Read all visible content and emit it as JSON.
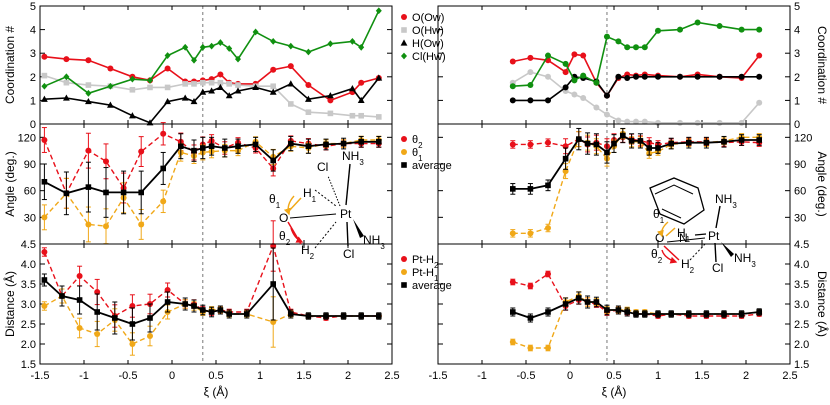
{
  "chart_data": {
    "type": "line",
    "xlabel": "ξ (Å)",
    "xlim": [
      -1.5,
      2.5
    ],
    "xticks": [
      -1.5,
      -1,
      -0.5,
      0,
      0.5,
      1,
      1.5,
      2,
      2.5
    ],
    "xtick_labels": [
      "-1.5",
      "-1",
      "-0.5",
      "0",
      "0.5",
      "1",
      "1.5",
      "2",
      "2.5"
    ],
    "colors": {
      "red": "#e8101a",
      "gray": "#c8c8c8",
      "black": "#000000",
      "green": "#109010",
      "orange": "#f0a818"
    },
    "rows": [
      {
        "id": "coord",
        "ylabel": "Coordination #",
        "ylim": [
          0,
          5
        ],
        "yticks": [
          0,
          1,
          2,
          3,
          4,
          5
        ],
        "ytick_labels": [
          "0",
          "1",
          "2",
          "3",
          "4",
          "5"
        ],
        "legend": [
          {
            "label": "O(Ow)",
            "color": "#e8101a",
            "marker": "circle"
          },
          {
            "label": "O(Hw)",
            "color": "#c8c8c8",
            "marker": "square"
          },
          {
            "label": "H(Ow)",
            "color": "#000000",
            "marker": "triangle"
          },
          {
            "label": "Cl(Hw)",
            "color": "#109010",
            "marker": "diamond"
          }
        ]
      },
      {
        "id": "angle",
        "ylabel": "Angle (deg.)",
        "ylim": [
          0,
          135
        ],
        "yticks": [
          0,
          30,
          60,
          90,
          120
        ],
        "ytick_labels": [
          "0",
          "30",
          "60",
          "90",
          "120"
        ],
        "legend": [
          {
            "label": "θ2",
            "color": "#e8101a",
            "marker": "circle"
          },
          {
            "label": "θ1",
            "color": "#f0a818",
            "marker": "circle"
          },
          {
            "label": "average",
            "color": "#000000",
            "marker": "square"
          }
        ]
      },
      {
        "id": "dist",
        "ylabel": "Distance (Å)",
        "ylim": [
          1.5,
          4.5
        ],
        "yticks": [
          1.5,
          2.0,
          2.5,
          3.0,
          3.5,
          4.0,
          4.5
        ],
        "ytick_labels": [
          "1.5",
          "2.0",
          "2.5",
          "3.0",
          "3.5",
          "4.0",
          "4.5"
        ],
        "legend": [
          {
            "label": "Pt-H2",
            "color": "#e8101a",
            "marker": "circle"
          },
          {
            "label": "Pt-H1",
            "color": "#f0a818",
            "marker": "circle"
          },
          {
            "label": "average",
            "color": "#000000",
            "marker": "square"
          }
        ]
      }
    ],
    "panels": [
      {
        "id": "left",
        "dashed_x": 0.35,
        "coord": {
          "x": [
            -1.45,
            -1.2,
            -0.95,
            -0.7,
            -0.45,
            -0.25,
            -0.05,
            0.15,
            0.25,
            0.35,
            0.45,
            0.55,
            0.65,
            0.75,
            0.95,
            1.15,
            1.35,
            1.55,
            1.8,
            2.05,
            2.15,
            2.35
          ],
          "series": [
            {
              "name": "O(Ow)",
              "color": "#e8101a",
              "marker": "circle",
              "values": [
                2.85,
                2.75,
                2.7,
                2.35,
                2.0,
                1.85,
                2.35,
                1.8,
                1.8,
                1.85,
                1.9,
                2.1,
                1.75,
                1.7,
                1.7,
                2.3,
                2.45,
                1.65,
                1.0,
                1.35,
                1.75,
                1.95
              ]
            },
            {
              "name": "O(Hw)",
              "color": "#c8c8c8",
              "marker": "square",
              "values": [
                2.05,
                1.75,
                1.65,
                1.6,
                1.45,
                1.55,
                1.55,
                1.7,
                1.7,
                1.75,
                1.75,
                1.75,
                1.7,
                1.65,
                1.6,
                1.6,
                0.85,
                0.5,
                0.45,
                0.35,
                0.35,
                0.3
              ]
            },
            {
              "name": "H(Ow)",
              "color": "#000000",
              "marker": "triangle",
              "values": [
                1.05,
                1.1,
                0.95,
                0.8,
                0.35,
                0.05,
                0.95,
                1.1,
                0.95,
                1.35,
                1.4,
                1.55,
                1.2,
                1.4,
                1.55,
                1.35,
                1.7,
                1.05,
                1.2,
                1.5,
                1.0,
                1.95
              ]
            },
            {
              "name": "Cl(Hw)",
              "color": "#109010",
              "marker": "diamond",
              "values": [
                1.6,
                2.0,
                1.3,
                1.6,
                1.9,
                1.85,
                2.9,
                3.25,
                2.7,
                3.25,
                3.3,
                3.45,
                3.2,
                2.75,
                3.9,
                3.5,
                3.3,
                3.05,
                3.4,
                3.5,
                3.25,
                4.8
              ]
            }
          ]
        },
        "angle": {
          "x": [
            -1.45,
            -1.2,
            -0.95,
            -0.75,
            -0.55,
            -0.35,
            -0.1,
            0.1,
            0.25,
            0.35,
            0.45,
            0.6,
            0.75,
            0.95,
            1.15,
            1.35,
            1.55,
            1.75,
            1.95,
            2.15,
            2.35
          ],
          "series": [
            {
              "name": "θ2",
              "color": "#e8101a",
              "values": [
                117,
                57,
                105,
                93,
                63,
                104,
                124,
                115,
                103,
                112,
                116,
                108,
                114,
                108,
                85,
                116,
                113,
                110,
                113,
                113,
                113
              ]
            },
            {
              "name": "θ1",
              "color": "#f0a818",
              "values": [
                30,
                57,
                22,
                20,
                52,
                22,
                48,
                103,
                99,
                103,
                104,
                105,
                105,
                115,
                98,
                110,
                108,
                113,
                113,
                117,
                117
              ]
            },
            {
              "name": "average",
              "color": "#000000",
              "values": [
                70,
                57,
                64,
                58,
                58,
                58,
                85,
                110,
                105,
                108,
                110,
                108,
                110,
                112,
                94,
                113,
                110,
                112,
                113,
                115,
                115
              ]
            }
          ],
          "err": [
            20,
            24,
            28,
            28,
            24,
            24,
            18,
            14,
            12,
            12,
            10,
            10,
            8,
            8,
            12,
            8,
            8,
            6,
            6,
            6,
            6
          ]
        },
        "dist": {
          "x": [
            -1.45,
            -1.25,
            -1.05,
            -0.85,
            -0.65,
            -0.45,
            -0.25,
            -0.05,
            0.15,
            0.25,
            0.35,
            0.45,
            0.55,
            0.65,
            0.85,
            1.15,
            1.35,
            1.55,
            1.75,
            1.95,
            2.15,
            2.35
          ],
          "series": [
            {
              "name": "Pt-H2",
              "color": "#e8101a",
              "values": [
                4.3,
                3.2,
                3.7,
                3.3,
                2.7,
                2.95,
                3.0,
                3.35,
                3.0,
                3.0,
                2.85,
                2.8,
                2.85,
                2.8,
                2.8,
                4.45,
                2.8,
                2.7,
                2.65,
                2.7,
                2.7,
                2.7
              ]
            },
            {
              "name": "Pt-H1",
              "color": "#f0a818",
              "values": [
                2.95,
                3.2,
                2.4,
                2.25,
                2.6,
                2.0,
                2.2,
                2.8,
                3.0,
                2.95,
                2.8,
                2.85,
                2.85,
                2.75,
                2.75,
                2.55,
                2.75,
                2.7,
                2.7,
                2.7,
                2.7,
                2.7
              ]
            },
            {
              "name": "average",
              "color": "#000000",
              "values": [
                3.6,
                3.2,
                3.1,
                2.8,
                2.65,
                2.5,
                2.65,
                3.05,
                3.0,
                2.95,
                2.85,
                2.8,
                2.85,
                2.75,
                2.75,
                3.5,
                2.75,
                2.7,
                2.7,
                2.7,
                2.7,
                2.7
              ]
            }
          ],
          "err": [
            0.15,
            0.25,
            0.35,
            0.45,
            0.4,
            0.4,
            0.35,
            0.25,
            0.15,
            0.15,
            0.12,
            0.12,
            0.1,
            0.1,
            0.1,
            0.9,
            0.1,
            0.08,
            0.08,
            0.08,
            0.08,
            0.08
          ]
        },
        "molecule_labels": {
          "theta1": "θ1",
          "theta2": "θ2",
          "h1": "H1",
          "h2": "H2",
          "o": "O",
          "pt": "Pt",
          "cl_top": "Cl",
          "nh3_top": "NH3",
          "nh3_right": "NH3",
          "cl_bottom": "Cl"
        }
      },
      {
        "id": "right",
        "dashed_x": 0.42,
        "coord": {
          "x": [
            -0.65,
            -0.45,
            -0.25,
            -0.05,
            0.05,
            0.15,
            0.3,
            0.42,
            0.55,
            0.65,
            0.75,
            0.85,
            1.0,
            1.25,
            1.45,
            1.7,
            1.95,
            2.15
          ],
          "series": [
            {
              "name": "O(Ow)",
              "color": "#e8101a",
              "values": [
                2.65,
                2.8,
                2.7,
                2.2,
                2.95,
                2.9,
                1.75,
                1.2,
                1.95,
                2.1,
                2.05,
                2.1,
                2.05,
                2.0,
                2.1,
                2.0,
                1.95,
                2.9
              ]
            },
            {
              "name": "O(Hw)",
              "color": "#c8c8c8",
              "values": [
                1.75,
                2.2,
                2.0,
                1.4,
                1.25,
                1.1,
                0.7,
                0.4,
                0.15,
                0.1,
                0.1,
                0.1,
                0.05,
                0.05,
                0.05,
                0.05,
                0.05,
                0.9
              ]
            },
            {
              "name": "H(Ow)",
              "color": "#000000",
              "values": [
                1.0,
                1.0,
                1.0,
                1.55,
                2.0,
                1.95,
                1.8,
                1.2,
                2.0,
                1.95,
                2.0,
                2.0,
                2.0,
                2.0,
                2.0,
                2.0,
                2.0,
                2.0
              ]
            },
            {
              "name": "Cl(Hw)",
              "color": "#109010",
              "values": [
                1.6,
                1.65,
                2.9,
                2.55,
                1.85,
                2.05,
                1.75,
                3.7,
                3.5,
                3.25,
                3.25,
                3.25,
                3.95,
                4.0,
                4.3,
                4.15,
                4.0,
                4.0
              ]
            }
          ]
        },
        "angle": {
          "x": [
            -0.65,
            -0.45,
            -0.25,
            -0.05,
            0.1,
            0.2,
            0.3,
            0.42,
            0.5,
            0.6,
            0.7,
            0.8,
            0.9,
            1.0,
            1.15,
            1.35,
            1.55,
            1.75,
            1.95,
            2.15
          ],
          "series": [
            {
              "name": "θ2",
              "color": "#e8101a",
              "values": [
                112,
                112,
                114,
                110,
                118,
                112,
                114,
                110,
                117,
                120,
                118,
                116,
                114,
                112,
                114,
                115,
                115,
                114,
                115,
                114
              ]
            },
            {
              "name": "θ1",
              "color": "#f0a818",
              "values": [
                12,
                12,
                18,
                82,
                118,
                114,
                110,
                96,
                110,
                124,
                115,
                115,
                102,
                104,
                112,
                114,
                114,
                116,
                120,
                120
              ]
            },
            {
              "name": "average",
              "color": "#000000",
              "values": [
                62,
                62,
                66,
                96,
                118,
                113,
                112,
                103,
                113,
                122,
                116,
                116,
                108,
                108,
                113,
                114,
                114,
                115,
                117,
                117
              ]
            }
          ],
          "err": [
            6,
            6,
            6,
            12,
            12,
            12,
            12,
            12,
            10,
            8,
            8,
            8,
            8,
            6,
            6,
            6,
            6,
            6,
            6,
            6
          ]
        },
        "dist": {
          "x": [
            -0.65,
            -0.45,
            -0.25,
            -0.05,
            0.1,
            0.2,
            0.3,
            0.42,
            0.55,
            0.65,
            0.75,
            0.85,
            1.0,
            1.15,
            1.35,
            1.55,
            1.75,
            1.95,
            2.15
          ],
          "series": [
            {
              "name": "Pt-H2",
              "color": "#e8101a",
              "values": [
                3.55,
                3.45,
                3.75,
                2.95,
                3.1,
                3.05,
                3.0,
                2.8,
                2.85,
                2.8,
                2.75,
                2.75,
                2.7,
                2.75,
                2.7,
                2.7,
                2.7,
                2.7,
                2.75
              ]
            },
            {
              "name": "Pt-H1",
              "color": "#f0a818",
              "values": [
                2.05,
                1.9,
                1.9,
                3.05,
                3.2,
                3.05,
                3.05,
                2.85,
                2.85,
                2.85,
                2.8,
                2.8,
                2.75,
                2.75,
                2.75,
                2.75,
                2.75,
                2.75,
                2.8
              ]
            },
            {
              "name": "average",
              "color": "#000000",
              "values": [
                2.8,
                2.65,
                2.8,
                3.0,
                3.15,
                3.05,
                3.05,
                2.85,
                2.85,
                2.8,
                2.75,
                2.75,
                2.75,
                2.75,
                2.75,
                2.75,
                2.75,
                2.75,
                2.8
              ]
            }
          ],
          "err": [
            0.1,
            0.1,
            0.1,
            0.15,
            0.15,
            0.15,
            0.12,
            0.12,
            0.1,
            0.1,
            0.08,
            0.08,
            0.08,
            0.08,
            0.08,
            0.08,
            0.08,
            0.08,
            0.08
          ]
        },
        "molecule_labels": {
          "theta1": "θ1",
          "theta2": "θ2",
          "h1": "H1",
          "h2": "H2",
          "o": "O",
          "n": "N",
          "pt": "Pt",
          "nh3_top": "NH3",
          "nh3_right": "NH3",
          "cl_bottom": "Cl"
        }
      }
    ]
  }
}
